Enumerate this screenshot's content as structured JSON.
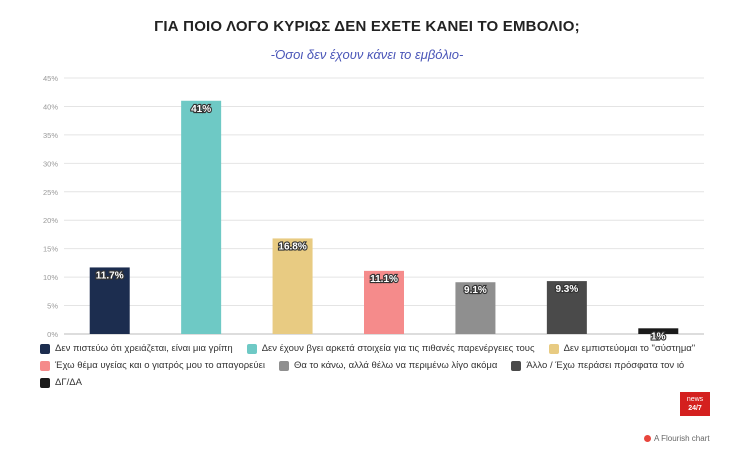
{
  "header": {
    "title": "ΓΙΑ ΠΟΙΟ ΛΟΓΟ ΚΥΡΙΩΣ ΔΕΝ ΕΧΕΤΕ ΚΑΝΕΙ ΤΟ ΕΜΒΟΛΙΟ;",
    "subtitle": "-Όσοι δεν έχουν κάνει το εμβόλιο-"
  },
  "chart_data": {
    "type": "bar",
    "title": "ΓΙΑ ΠΟΙΟ ΛΟΓΟ ΚΥΡΙΩΣ ΔΕΝ ΕΧΕΤΕ ΚΑΝΕΙ ΤΟ ΕΜΒΟΛΙΟ;",
    "subtitle": "-Όσοι δεν έχουν κάνει το εμβόλιο-",
    "xlabel": "",
    "ylabel": "",
    "ylim": [
      0,
      45
    ],
    "yticks": [
      0,
      5,
      10,
      15,
      20,
      25,
      30,
      35,
      40,
      45
    ],
    "ytick_labels": [
      "0%",
      "5%",
      "10%",
      "15%",
      "20%",
      "25%",
      "30%",
      "35%",
      "40%",
      "45%"
    ],
    "grid": true,
    "legend_position": "bottom",
    "categories": [
      "Δεν πιστεύω ότι χρειάζεται, είναι μια γρίπη",
      "Δεν έχουν βγει αρκετά στοιχεία για τις πιθανές παρενέργειες τους",
      "Δεν εμπιστεύομαι το \"σύστημα\"",
      "Έχω θέμα υγείας και ο γιατρός μου το απαγορεύει",
      "Θα το κάνω, αλλά θέλω να περιμένω λίγο ακόμα",
      "Άλλο / Έχω περάσει πρόσφατα τον ιό",
      "ΔΓ/ΔΑ"
    ],
    "values": [
      11.7,
      41,
      16.8,
      11.1,
      9.1,
      9.3,
      1
    ],
    "value_labels": [
      "11.7%",
      "41%",
      "16.8%",
      "11.1%",
      "9.1%",
      "9.3%",
      "1%"
    ],
    "colors": [
      "#1c2d4f",
      "#6ec9c5",
      "#e8cb82",
      "#f58b8b",
      "#8f8f8f",
      "#4a4a4a",
      "#1a1a1a"
    ]
  },
  "branding": {
    "logo_line1": "news",
    "logo_line2": "24/7",
    "flourish_credit": "A Flourish chart"
  }
}
